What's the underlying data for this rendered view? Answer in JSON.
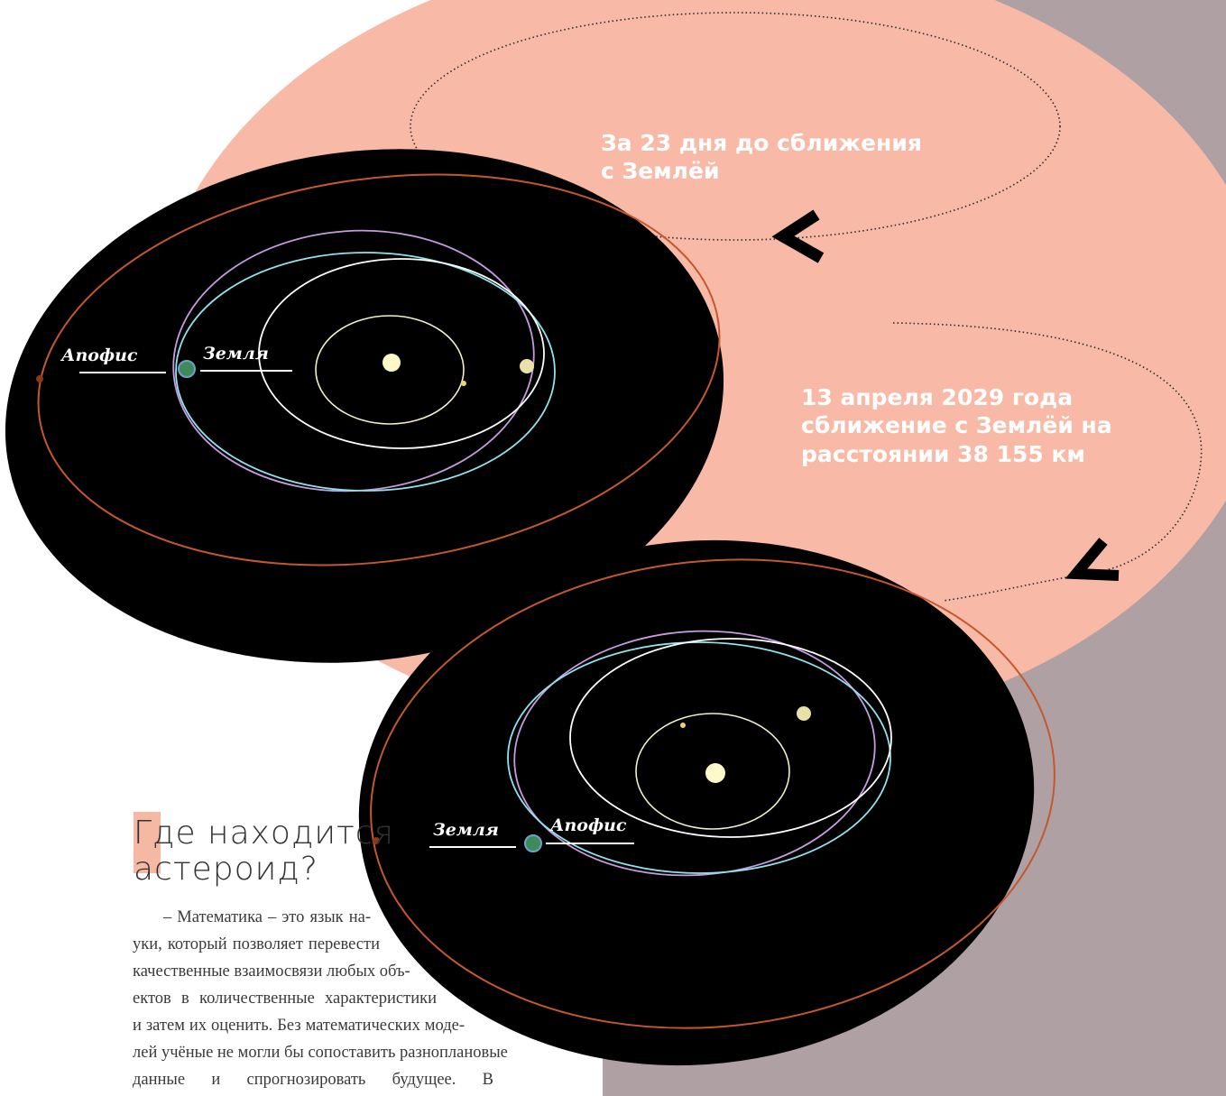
{
  "callouts": {
    "before": {
      "line1": "За 23 дня до сближения",
      "line2": "с Землёй"
    },
    "approach": {
      "line1": "13 апреля 2029 года",
      "line2": "сближение с Землёй на",
      "line3": "расстоянии 38 155 км"
    }
  },
  "diagrams": {
    "top": {
      "label_asteroid": "Апофис",
      "label_earth": "Земля"
    },
    "bottom": {
      "label_earth": "Земля",
      "label_asteroid": "Апофис"
    }
  },
  "article": {
    "heading_line1": "Где находится",
    "heading_line2": "астероид?",
    "body_lines": [
      "– Математика – это язык на-",
      "уки, который позволяет перевести",
      "качественные взаимосвязи любых объ-",
      "ектов в количественные характеристики",
      "и затем их оценить. Без математических моде-",
      "лей учёные не могли бы сопоставить разноплановые",
      "данные и спрогнозировать будущее. В"
    ]
  },
  "colors": {
    "side_panel": "#afa0a3",
    "salmon": "#f8b9a6",
    "space": "#000000",
    "orbit_outer": "#c4582c",
    "orbit_asteroid": "#c79be0",
    "orbit_earth": "#8fe3ee",
    "orbit_inner": "#f2f0c8",
    "sun": "#fff8c8"
  },
  "icons": {
    "arrow": "chevron-left-icon"
  }
}
